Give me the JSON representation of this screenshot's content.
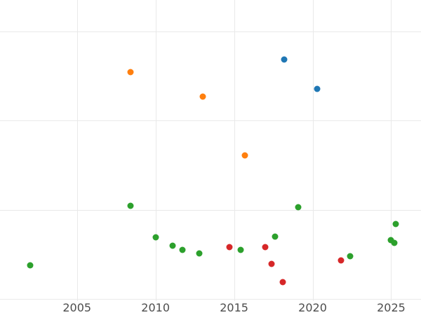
{
  "chart_data": {
    "type": "scatter",
    "title": "",
    "xlabel": "",
    "ylabel": "",
    "grid": true,
    "legend": "none",
    "background_color": "#ffffff",
    "grid_color": "#e9e9e9",
    "tick_label_color": "#4d4d4d",
    "xlim": [
      2000.1,
      2026.9
    ],
    "ylim": [
      -0.18,
      3.35
    ],
    "x_ticks": [
      {
        "value": 2005,
        "label": "2005"
      },
      {
        "value": 2010,
        "label": "2010"
      },
      {
        "value": 2015,
        "label": "2015"
      },
      {
        "value": 2020,
        "label": "2020"
      },
      {
        "value": 2025,
        "label": "2025"
      }
    ],
    "y_gridlines": [
      0,
      1,
      2,
      3
    ],
    "series": [
      {
        "name": "green-series",
        "color": "#2ca02c",
        "points": [
          {
            "x": 2002.0,
            "y": 0.38
          },
          {
            "x": 2008.4,
            "y": 1.04
          },
          {
            "x": 2010.0,
            "y": 0.69
          },
          {
            "x": 2011.1,
            "y": 0.6
          },
          {
            "x": 2011.7,
            "y": 0.55
          },
          {
            "x": 2012.8,
            "y": 0.51
          },
          {
            "x": 2015.4,
            "y": 0.55
          },
          {
            "x": 2017.6,
            "y": 0.7
          },
          {
            "x": 2019.1,
            "y": 1.03
          },
          {
            "x": 2022.4,
            "y": 0.48
          },
          {
            "x": 2025.0,
            "y": 0.66
          },
          {
            "x": 2025.2,
            "y": 0.63
          },
          {
            "x": 2025.3,
            "y": 0.84
          }
        ]
      },
      {
        "name": "orange-series",
        "color": "#ff7f0e",
        "points": [
          {
            "x": 2008.4,
            "y": 2.54
          },
          {
            "x": 2013.0,
            "y": 2.27
          },
          {
            "x": 2015.7,
            "y": 1.61
          }
        ]
      },
      {
        "name": "blue-series",
        "color": "#1f77b4",
        "points": [
          {
            "x": 2018.2,
            "y": 2.68
          },
          {
            "x": 2020.3,
            "y": 2.35
          }
        ]
      },
      {
        "name": "red-series",
        "color": "#d62728",
        "points": [
          {
            "x": 2014.7,
            "y": 0.58
          },
          {
            "x": 2017.0,
            "y": 0.58
          },
          {
            "x": 2017.4,
            "y": 0.39
          },
          {
            "x": 2018.1,
            "y": 0.19
          },
          {
            "x": 2021.8,
            "y": 0.43
          }
        ]
      }
    ]
  }
}
